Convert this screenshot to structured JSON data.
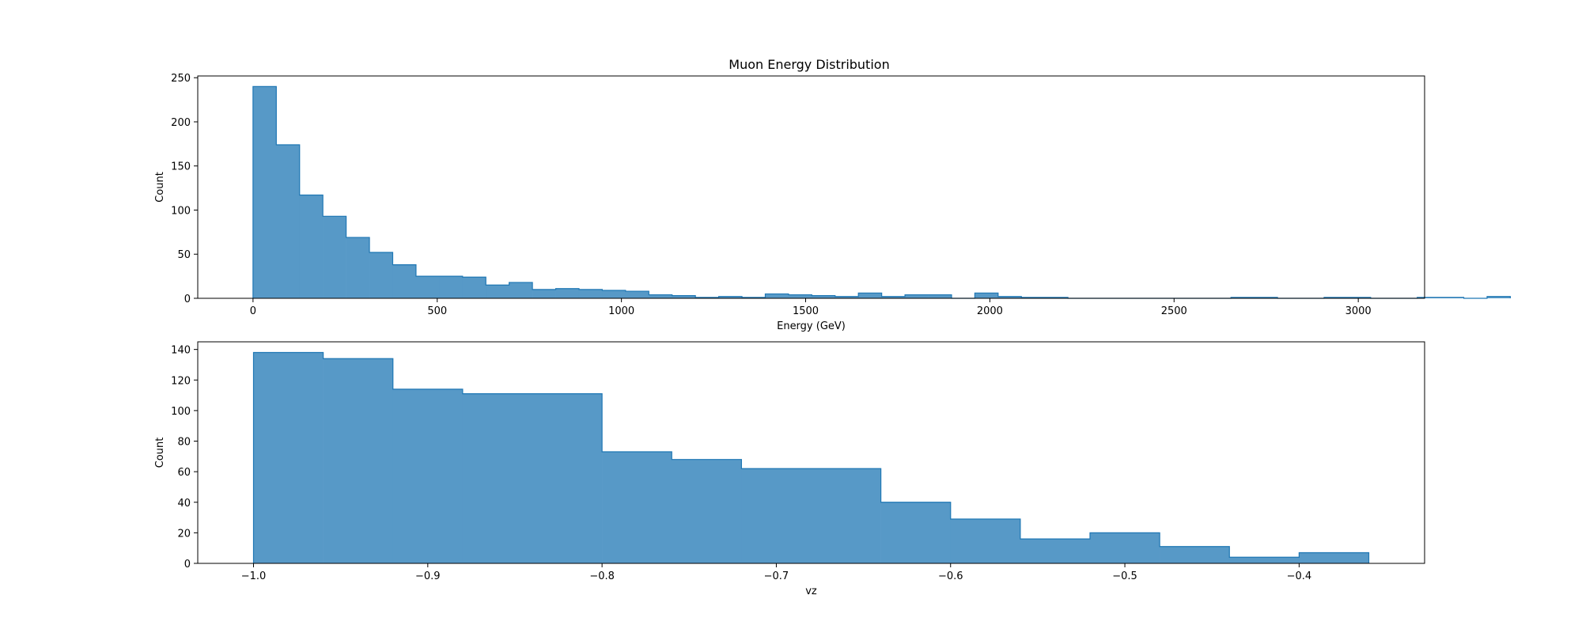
{
  "figure": {
    "title": "Muon Energy Distribution"
  },
  "colors": {
    "fill": "#5799c7",
    "edge": "#1f77b4"
  },
  "chart_data": [
    {
      "type": "histogram",
      "title": "Muon Energy Distribution",
      "xlabel": "Energy (GeV)",
      "ylabel": "Count",
      "xlim": [
        -150,
        3180
      ],
      "ylim": [
        0,
        252
      ],
      "xticks": [
        0,
        500,
        1000,
        1500,
        2000,
        2500,
        3000
      ],
      "xtick_labels": [
        "0",
        "500",
        "1000",
        "1500",
        "2000",
        "2500",
        "3000"
      ],
      "yticks": [
        0,
        50,
        100,
        150,
        200,
        250
      ],
      "ytick_labels": [
        "0",
        "50",
        "100",
        "150",
        "200",
        "250"
      ],
      "bin_start": 0,
      "bin_width": 63.2,
      "counts": [
        240,
        174,
        117,
        93,
        69,
        52,
        38,
        25,
        25,
        24,
        15,
        18,
        10,
        11,
        10,
        9,
        8,
        4,
        3,
        1,
        2,
        1,
        5,
        4,
        3,
        2,
        6,
        2,
        4,
        4,
        0,
        6,
        2,
        1,
        1,
        0,
        0,
        0,
        0,
        0,
        0,
        0,
        1,
        1,
        0,
        0,
        1,
        1,
        0,
        0,
        1,
        1,
        0,
        2
      ]
    },
    {
      "type": "histogram",
      "title": "",
      "xlabel": "vz",
      "ylabel": "Count",
      "xlim": [
        -1.032,
        -0.328
      ],
      "ylim": [
        0,
        145
      ],
      "xticks": [
        -1.0,
        -0.9,
        -0.8,
        -0.7,
        -0.6,
        -0.5,
        -0.4
      ],
      "xtick_labels": [
        "−1.0",
        "−0.9",
        "−0.8",
        "−0.7",
        "−0.6",
        "−0.5",
        "−0.4"
      ],
      "yticks": [
        0,
        20,
        40,
        60,
        80,
        100,
        120,
        140
      ],
      "ytick_labels": [
        "0",
        "20",
        "40",
        "60",
        "80",
        "100",
        "120",
        "140"
      ],
      "bin_start": -1.0,
      "bin_width": 0.04,
      "counts": [
        138,
        134,
        114,
        111,
        111,
        73,
        68,
        62,
        62,
        40,
        29,
        16,
        20,
        11,
        4,
        7
      ]
    }
  ]
}
